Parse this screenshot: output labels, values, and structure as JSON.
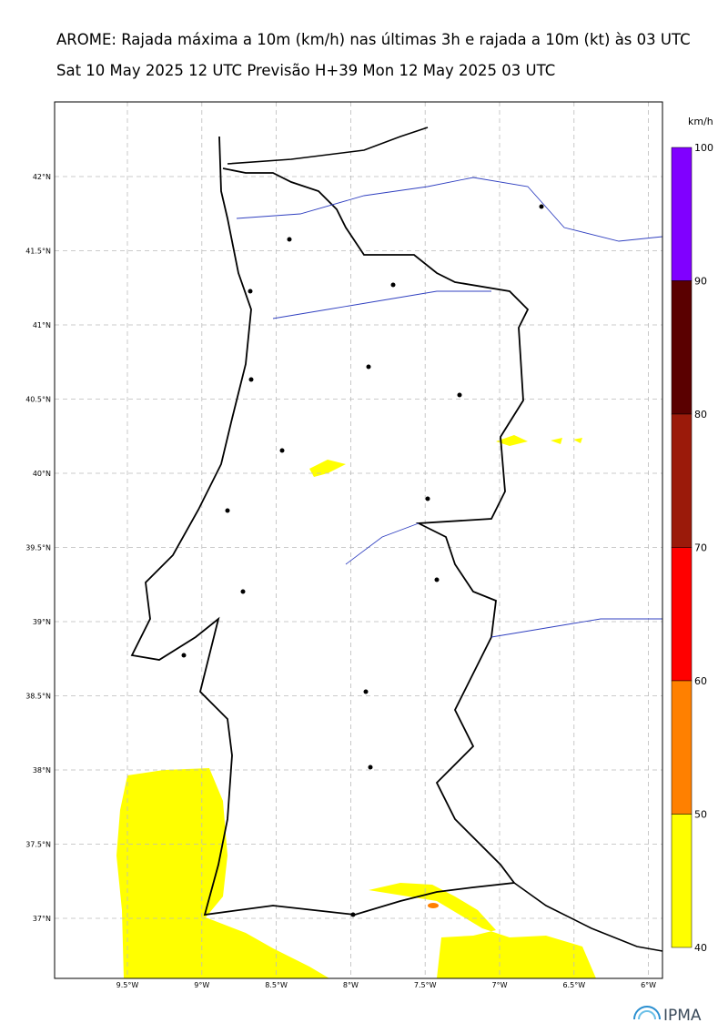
{
  "header": {
    "title": "AROME: Rajada máxima a 10m (km/h) nas últimas 3h e rajada a 10m (kt) às 03 UTC",
    "subtitle": "Sat 10 May 2025 12 UTC Previsão H+39 Mon 12 May 2025 03 UTC"
  },
  "map": {
    "lat_labels": [
      "42°N",
      "41.5°N",
      "41°N",
      "40.5°N",
      "40°N",
      "39.5°N",
      "39°N",
      "38.5°N",
      "38°N",
      "37.5°N",
      "37°N"
    ],
    "lon_labels": [
      "9.5°W",
      "9°W",
      "8.5°W",
      "8°W",
      "7.5°W",
      "7°W",
      "6.5°W",
      "6°W"
    ]
  },
  "colorbar": {
    "unit": "km/h",
    "labels": [
      "100",
      "90",
      "80",
      "70",
      "60",
      "50",
      "40"
    ],
    "colors": [
      "#8000ff",
      "#5a0000",
      "#9b1a0a",
      "#ff0000",
      "#ff8000",
      "#ffff00"
    ]
  },
  "logo": "IPMA"
}
